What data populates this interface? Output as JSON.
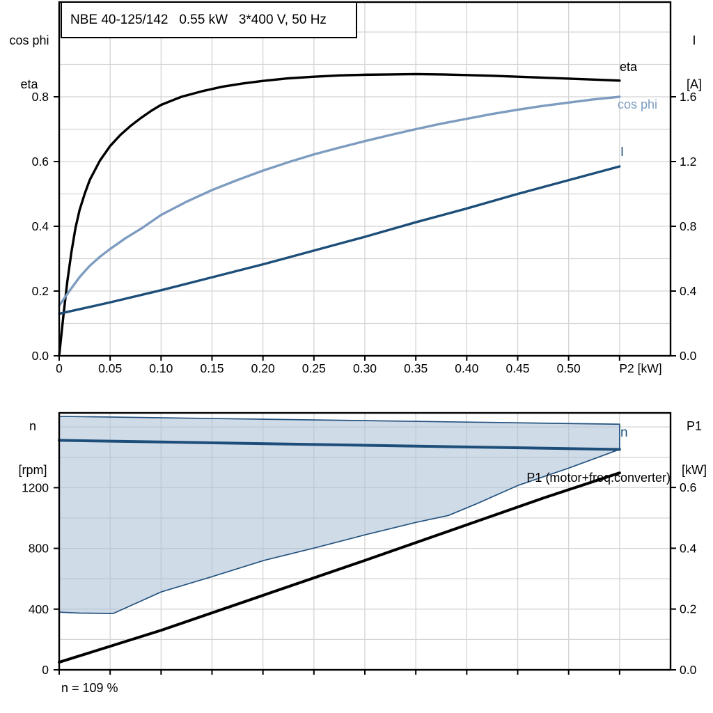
{
  "panel": {
    "title": "NBE 40-125/142   0.55 kW   3*400 V, 50 Hz"
  },
  "chart_data": [
    {
      "type": "line",
      "title": "NBE 40-125/142   0.55 kW   3*400 V, 50 Hz",
      "x_axis": {
        "label": "P2 [kW]",
        "min": 0,
        "max": 0.6,
        "curves_end": 0.55,
        "grid_step": 0.05,
        "ticks": [
          {
            "v": 0,
            "label": "0"
          },
          {
            "v": 0.05,
            "label": "0.05"
          },
          {
            "v": 0.1,
            "label": "0.10"
          },
          {
            "v": 0.15,
            "label": "0.15"
          },
          {
            "v": 0.2,
            "label": "0.20"
          },
          {
            "v": 0.25,
            "label": "0.25"
          },
          {
            "v": 0.3,
            "label": "0.30"
          },
          {
            "v": 0.35,
            "label": "0.35"
          },
          {
            "v": 0.4,
            "label": "0.40"
          },
          {
            "v": 0.45,
            "label": "0.45"
          },
          {
            "v": 0.5,
            "label": "0.50"
          },
          {
            "v": 0.55,
            "label": ""
          }
        ]
      },
      "y_left": {
        "title1": "cos phi",
        "title2": "eta",
        "min": 0,
        "max": 1.09,
        "grid_step": 0.1,
        "grid_max": 1.0,
        "ticks": [
          {
            "v": 0.0,
            "label": "0.0"
          },
          {
            "v": 0.2,
            "label": "0.2"
          },
          {
            "v": 0.4,
            "label": "0.4"
          },
          {
            "v": 0.6,
            "label": "0.6"
          },
          {
            "v": 0.8,
            "label": "0.8"
          }
        ]
      },
      "y_right": {
        "title1": "I",
        "title2": "[A]",
        "units": "A",
        "ticks": [
          {
            "v": 0.0,
            "label": "0.0"
          },
          {
            "v": 0.4,
            "label": "0.4"
          },
          {
            "v": 0.8,
            "label": "0.8"
          },
          {
            "v": 1.2,
            "label": "1.2"
          },
          {
            "v": 1.6,
            "label": "1.6"
          }
        ]
      },
      "series": [
        {
          "name": "eta",
          "axis": "left",
          "color": "#000000",
          "width": 3.4,
          "points": [
            [
              0,
              0
            ],
            [
              0.004,
              0.12
            ],
            [
              0.008,
              0.23
            ],
            [
              0.012,
              0.32
            ],
            [
              0.016,
              0.395
            ],
            [
              0.02,
              0.45
            ],
            [
              0.025,
              0.5
            ],
            [
              0.03,
              0.543
            ],
            [
              0.04,
              0.603
            ],
            [
              0.05,
              0.648
            ],
            [
              0.06,
              0.682
            ],
            [
              0.07,
              0.71
            ],
            [
              0.08,
              0.734
            ],
            [
              0.09,
              0.756
            ],
            [
              0.1,
              0.775
            ],
            [
              0.12,
              0.8
            ],
            [
              0.14,
              0.817
            ],
            [
              0.16,
              0.831
            ],
            [
              0.18,
              0.841
            ],
            [
              0.2,
              0.849
            ],
            [
              0.225,
              0.857
            ],
            [
              0.25,
              0.862
            ],
            [
              0.275,
              0.866
            ],
            [
              0.3,
              0.868
            ],
            [
              0.325,
              0.869
            ],
            [
              0.35,
              0.87
            ],
            [
              0.375,
              0.869
            ],
            [
              0.4,
              0.867
            ],
            [
              0.425,
              0.865
            ],
            [
              0.45,
              0.862
            ],
            [
              0.475,
              0.859
            ],
            [
              0.5,
              0.856
            ],
            [
              0.525,
              0.853
            ],
            [
              0.55,
              0.85
            ]
          ]
        },
        {
          "name": "cos phi",
          "axis": "left",
          "color": "#7d9cc0",
          "width": 3.4,
          "points": [
            [
              0,
              0.155
            ],
            [
              0.01,
              0.2
            ],
            [
              0.02,
              0.243
            ],
            [
              0.03,
              0.278
            ],
            [
              0.04,
              0.306
            ],
            [
              0.05,
              0.33
            ],
            [
              0.065,
              0.363
            ],
            [
              0.08,
              0.392
            ],
            [
              0.1,
              0.435
            ],
            [
              0.125,
              0.476
            ],
            [
              0.15,
              0.512
            ],
            [
              0.175,
              0.543
            ],
            [
              0.2,
              0.572
            ],
            [
              0.225,
              0.598
            ],
            [
              0.25,
              0.622
            ],
            [
              0.275,
              0.643
            ],
            [
              0.3,
              0.663
            ],
            [
              0.325,
              0.682
            ],
            [
              0.35,
              0.7
            ],
            [
              0.375,
              0.717
            ],
            [
              0.4,
              0.732
            ],
            [
              0.425,
              0.747
            ],
            [
              0.45,
              0.76
            ],
            [
              0.475,
              0.772
            ],
            [
              0.5,
              0.782
            ],
            [
              0.525,
              0.792
            ],
            [
              0.55,
              0.8
            ]
          ]
        },
        {
          "name": "I",
          "axis": "right",
          "color": "#1d4e79",
          "width": 3.4,
          "points": [
            [
              0,
              0.26
            ],
            [
              0.05,
              0.33
            ],
            [
              0.1,
              0.405
            ],
            [
              0.15,
              0.485
            ],
            [
              0.2,
              0.565
            ],
            [
              0.25,
              0.65
            ],
            [
              0.3,
              0.735
            ],
            [
              0.35,
              0.825
            ],
            [
              0.4,
              0.91
            ],
            [
              0.45,
              1.0
            ],
            [
              0.5,
              1.085
            ],
            [
              0.55,
              1.17
            ]
          ]
        }
      ]
    },
    {
      "type": "line+area",
      "x_axis": {
        "label": null,
        "min": 0,
        "max": 0.6,
        "curves_end": 0.55,
        "grid_step": 0.05,
        "ticks": [
          {
            "v": 0,
            "label": ""
          },
          {
            "v": 0.05,
            "label": ""
          },
          {
            "v": 0.1,
            "label": ""
          },
          {
            "v": 0.15,
            "label": ""
          },
          {
            "v": 0.2,
            "label": ""
          },
          {
            "v": 0.25,
            "label": ""
          },
          {
            "v": 0.3,
            "label": ""
          },
          {
            "v": 0.35,
            "label": ""
          },
          {
            "v": 0.4,
            "label": ""
          },
          {
            "v": 0.45,
            "label": ""
          },
          {
            "v": 0.5,
            "label": ""
          },
          {
            "v": 0.55,
            "label": ""
          }
        ]
      },
      "y_left": {
        "title1": "n",
        "title2": "[rpm]",
        "min": 0,
        "max": 1690,
        "grid_step": 200,
        "grid_max": 1600,
        "ticks": [
          {
            "v": 0,
            "label": "0"
          },
          {
            "v": 400,
            "label": "400"
          },
          {
            "v": 800,
            "label": "800"
          },
          {
            "v": 1200,
            "label": "1200"
          }
        ]
      },
      "y_right": {
        "title1": "P1",
        "title2": "[kW]",
        "units": "kW",
        "ticks": [
          {
            "v": 0.0,
            "label": "0.0"
          },
          {
            "v": 0.2,
            "label": "0.2"
          },
          {
            "v": 0.4,
            "label": "0.4"
          },
          {
            "v": 0.6,
            "label": "0.6"
          }
        ]
      },
      "area": {
        "name": "speed-operating-envelope",
        "fill": "#a9bed6",
        "fill_opacity": 0.55,
        "border_color": "#24537f",
        "axis": "left",
        "upper": [
          [
            0,
            1670
          ],
          [
            0.55,
            1618
          ]
        ],
        "lower": [
          [
            0,
            380
          ],
          [
            0.02,
            374
          ],
          [
            0.053,
            371
          ],
          [
            0.1,
            513
          ],
          [
            0.15,
            614
          ],
          [
            0.2,
            719
          ],
          [
            0.25,
            802
          ],
          [
            0.3,
            889
          ],
          [
            0.35,
            971
          ],
          [
            0.382,
            1017
          ],
          [
            0.41,
            1095
          ],
          [
            0.45,
            1214
          ],
          [
            0.5,
            1329
          ],
          [
            0.55,
            1452
          ]
        ]
      },
      "series": [
        {
          "name": "n",
          "axis": "left",
          "color": "#1d4e79",
          "width": 4,
          "points": [
            [
              0,
              1512
            ],
            [
              0.55,
              1452
            ]
          ]
        },
        {
          "name": "P1 (motor+freq.converter)",
          "axis": "right",
          "color": "#000000",
          "width": 4,
          "points": [
            [
              0,
              0.025
            ],
            [
              0.1,
              0.13
            ],
            [
              0.2,
              0.245
            ],
            [
              0.3,
              0.36
            ],
            [
              0.4,
              0.477
            ],
            [
              0.475,
              0.565
            ],
            [
              0.55,
              0.648
            ]
          ]
        }
      ],
      "annotation": "n = 109 %"
    }
  ]
}
